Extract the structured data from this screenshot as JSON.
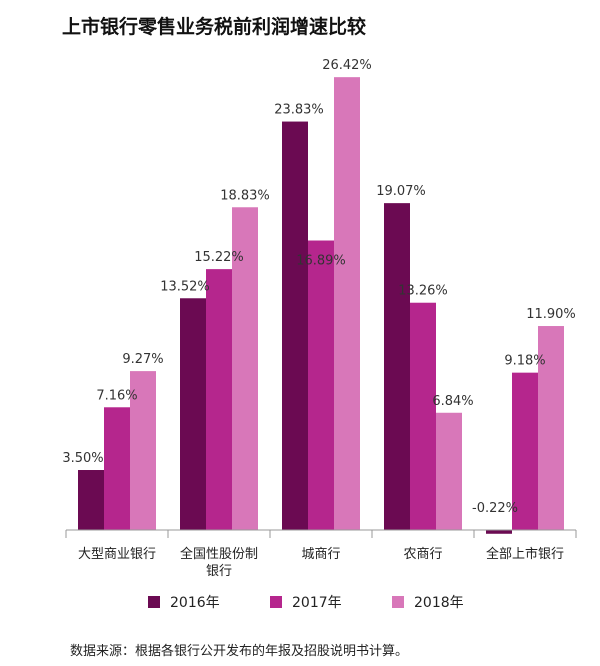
{
  "chart_data": {
    "type": "bar",
    "title": "上市银行零售业务税前利润增速比较",
    "categories": [
      [
        "大型商业银行"
      ],
      [
        "全国性股份制",
        "银行"
      ],
      [
        "城商行"
      ],
      [
        "农商行"
      ],
      [
        "全部上市银行"
      ]
    ],
    "series": [
      {
        "name": "2016年",
        "color": "#6b0a52",
        "values": [
          3.5,
          13.52,
          23.83,
          19.07,
          -0.22
        ],
        "labels": [
          "3.50%",
          "13.52%",
          "23.83%",
          "19.07%",
          "-0.22%"
        ]
      },
      {
        "name": "2017年",
        "color": "#b5268d",
        "values": [
          7.16,
          15.22,
          16.89,
          13.26,
          9.18
        ],
        "labels": [
          "7.16%",
          "15.22%",
          "16.89%",
          "13.26%",
          "9.18%"
        ]
      },
      {
        "name": "2018年",
        "color": "#d877b9",
        "values": [
          9.27,
          18.83,
          26.42,
          6.84,
          11.9
        ],
        "labels": [
          "9.27%",
          "18.83%",
          "26.42%",
          "6.84%",
          "11.90%"
        ]
      }
    ],
    "ylim": [
      -0.3,
      28
    ],
    "legend_position": "bottom",
    "grid": false
  },
  "source_note": "数据来源：根据各银行公开发布的年报及招股说明书计算。"
}
